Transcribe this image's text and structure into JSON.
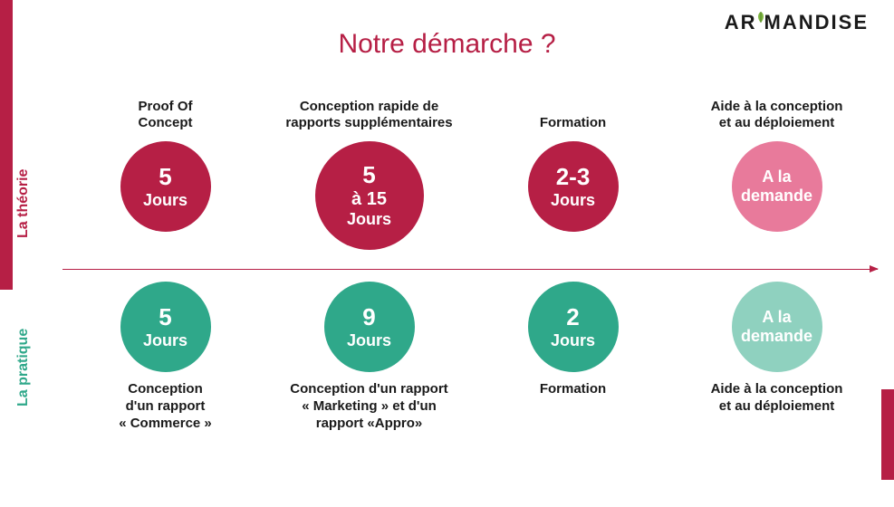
{
  "brand": "AROMANDISE",
  "title": "Notre démarche ?",
  "labels": {
    "theory": "La théorie",
    "practice": "La pratique"
  },
  "colors": {
    "primary_red": "#b61f45",
    "light_red": "#e87a9b",
    "primary_green": "#2fa88a",
    "light_green": "#8fd1bf",
    "text": "#1a1a1a",
    "background": "#ffffff"
  },
  "bubble_sizes": {
    "large": 120,
    "normal": 100
  },
  "columns": [
    {
      "top_caption": "Proof Of\nConcept",
      "top_bubble": {
        "value": "5",
        "mid": null,
        "unit": "Jours",
        "text": null,
        "color": "#b61f45",
        "size": 100
      },
      "bottom_bubble": {
        "value": "5",
        "mid": null,
        "unit": "Jours",
        "text": null,
        "color": "#2fa88a",
        "size": 100
      },
      "bottom_caption": "Conception\nd'un rapport\n« Commerce »"
    },
    {
      "top_caption": "Conception rapide de\nrapports supplémentaires",
      "top_bubble": {
        "value": "5",
        "mid": "à 15",
        "unit": "Jours",
        "text": null,
        "color": "#b61f45",
        "size": 120
      },
      "bottom_bubble": {
        "value": "9",
        "mid": null,
        "unit": "Jours",
        "text": null,
        "color": "#2fa88a",
        "size": 100
      },
      "bottom_caption": "Conception d'un rapport\n« Marketing » et d'un\nrapport «Appro»"
    },
    {
      "top_caption": "Formation",
      "top_bubble": {
        "value": "2-3",
        "mid": null,
        "unit": "Jours",
        "text": null,
        "color": "#b61f45",
        "size": 100
      },
      "bottom_bubble": {
        "value": "2",
        "mid": null,
        "unit": "Jours",
        "text": null,
        "color": "#2fa88a",
        "size": 100
      },
      "bottom_caption": "Formation"
    },
    {
      "top_caption": "Aide à la conception\net au déploiement",
      "top_bubble": {
        "value": null,
        "mid": null,
        "unit": null,
        "text": "A la\ndemande",
        "color": "#e87a9b",
        "size": 100
      },
      "bottom_bubble": {
        "value": null,
        "mid": null,
        "unit": null,
        "text": "A la\ndemande",
        "color": "#8fd1bf",
        "size": 100
      },
      "bottom_caption": "Aide à la conception\net au déploiement"
    }
  ]
}
